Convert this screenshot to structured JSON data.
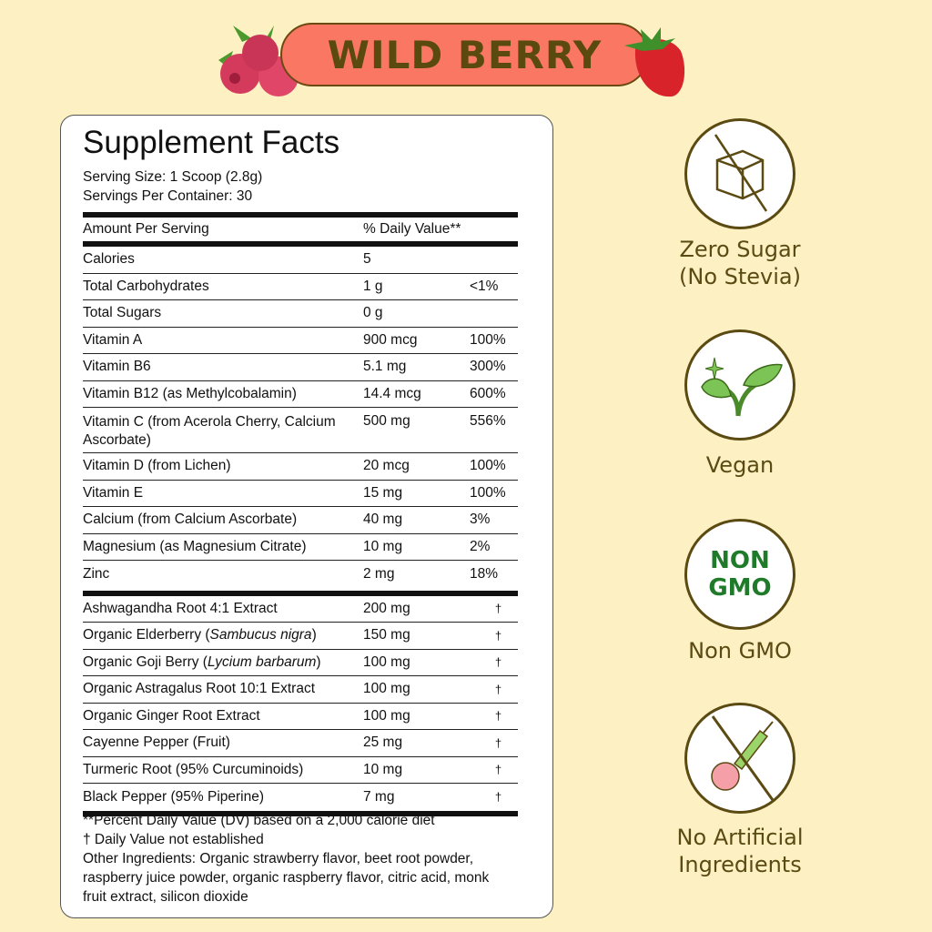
{
  "banner": {
    "flavor": "WILD BERRY"
  },
  "facts": {
    "title": "Supplement Facts",
    "serving_size": "Serving Size: 1 Scoop (2.8g)",
    "servings_per_container": "Servings Per Container: 30",
    "header": {
      "amount": "Amount Per Serving",
      "dv": "% Daily Value**"
    },
    "nutrients": [
      {
        "name": "Calories",
        "amount": "5",
        "dv": ""
      },
      {
        "name": "Total Carbohydrates",
        "amount": "1 g",
        "dv": "<1%"
      },
      {
        "name": "Total Sugars",
        "amount": "0 g",
        "dv": ""
      },
      {
        "name": "Vitamin A",
        "amount": "900 mcg",
        "dv": "100%"
      },
      {
        "name": "Vitamin B6",
        "amount": "5.1 mg",
        "dv": "300%"
      },
      {
        "name": "Vitamin B12 (as Methylcobalamin)",
        "amount": "14.4 mcg",
        "dv": "600%"
      },
      {
        "name": "Vitamin C (from Acerola Cherry, Calcium Ascorbate)",
        "amount": "500 mg",
        "dv": "556%"
      },
      {
        "name": "Vitamin D (from Lichen)",
        "amount": "20 mcg",
        "dv": "100%"
      },
      {
        "name": "Vitamin E",
        "amount": "15 mg",
        "dv": "100%"
      },
      {
        "name": "Calcium (from Calcium Ascorbate)",
        "amount": "40 mg",
        "dv": "3%"
      },
      {
        "name": "Magnesium (as Magnesium Citrate)",
        "amount": "10 mg",
        "dv": "2%"
      },
      {
        "name": "Zinc",
        "amount": "2 mg",
        "dv": "18%"
      }
    ],
    "herbals": [
      {
        "name": "Ashwagandha Root 4:1 Extract",
        "latin": "",
        "amount": "200 mg",
        "dv": "†"
      },
      {
        "name": "Organic Elderberry (",
        "latin": "Sambucus nigra",
        "amount": "150 mg",
        "dv": "†"
      },
      {
        "name": "Organic Goji Berry (",
        "latin": "Lycium barbarum",
        "amount": "100 mg",
        "dv": "†"
      },
      {
        "name": "Organic Astragalus Root 10:1 Extract",
        "latin": "",
        "amount": "100 mg",
        "dv": "†"
      },
      {
        "name": "Organic Ginger Root Extract",
        "latin": "",
        "amount": "100 mg",
        "dv": "†"
      },
      {
        "name": "Cayenne Pepper (Fruit)",
        "latin": "",
        "amount": "25 mg",
        "dv": "†"
      },
      {
        "name": "Turmeric Root (95% Curcuminoids)",
        "latin": "",
        "amount": "10 mg",
        "dv": "†"
      },
      {
        "name": "Black Pepper (95% Piperine)",
        "latin": "",
        "amount": "7 mg",
        "dv": "†"
      }
    ],
    "footnote_dv": "**Percent Daily Value (DV) based on a 2,000 calorie diet",
    "footnote_dagger": "† Daily Value not established",
    "other_ingredients": "Other Ingredients:  Organic strawberry flavor, beet root powder, raspberry juice powder, organic raspberry flavor, citric acid, monk fruit extract, silicon dioxide"
  },
  "badges": [
    {
      "icon": "no-sugar-cube-icon",
      "label1": "Zero Sugar",
      "label2": "(No Stevia)"
    },
    {
      "icon": "sprout-icon",
      "label1": "Vegan",
      "label2": ""
    },
    {
      "icon": "non-gmo-icon",
      "icon_text1": "NON",
      "icon_text2": "GMO",
      "label1": "Non GMO",
      "label2": ""
    },
    {
      "icon": "no-artificial-syringe-icon",
      "label1": "No Artificial",
      "label2": "Ingredients"
    }
  ],
  "colors": {
    "background": "#fdf1c4",
    "banner": "#f97763",
    "text_brown": "#5b4a12",
    "gmo_green": "#1f7a2a"
  }
}
